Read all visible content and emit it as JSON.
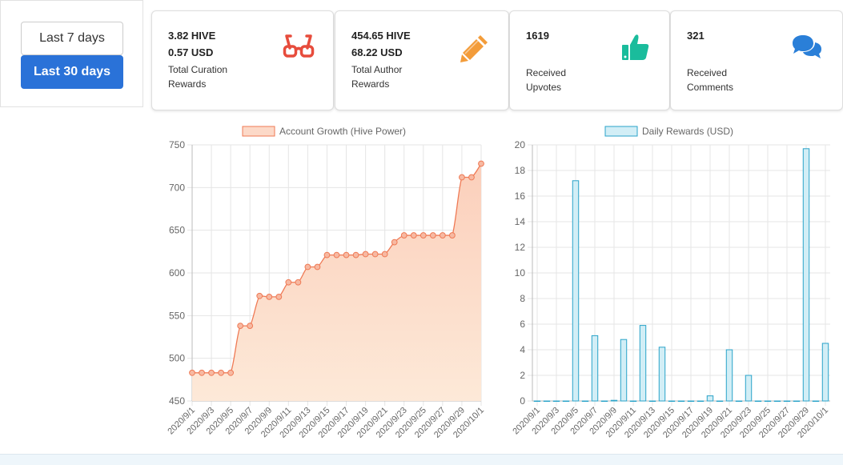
{
  "period": {
    "last7_label": "Last 7 days",
    "last30_label": "Last 30 days"
  },
  "cards": {
    "curation": {
      "hive": "3.82 HIVE",
      "usd": "0.57 USD",
      "label_line1": "Total Curation",
      "label_line2": "Rewards",
      "icon": "glasses-icon",
      "color": "#e74c3c"
    },
    "author": {
      "hive": "454.65 HIVE",
      "usd": "68.22 USD",
      "label_line1": "Total Author",
      "label_line2": "Rewards",
      "icon": "pencil-icon",
      "color": "#f39c3a"
    },
    "upvotes": {
      "value": "1619",
      "label_line1": "Received",
      "label_line2": "Upvotes",
      "icon": "thumbs-up-icon",
      "color": "#1abc9c"
    },
    "comments": {
      "value": "321",
      "label_line1": "Received",
      "label_line2": "Comments",
      "icon": "comments-icon",
      "color": "#2a7fd8"
    }
  },
  "chart_data": [
    {
      "type": "area",
      "legend": "Account Growth (Hive Power)",
      "color_line": "#ef7a55",
      "color_fill": "#fcd9c8",
      "ylim": [
        450,
        750
      ],
      "yticks": [
        450,
        500,
        550,
        600,
        650,
        700,
        750
      ],
      "x": [
        "2020/9/1",
        "2020/9/2",
        "2020/9/3",
        "2020/9/4",
        "2020/9/5",
        "2020/9/6",
        "2020/9/7",
        "2020/9/8",
        "2020/9/9",
        "2020/9/10",
        "2020/9/11",
        "2020/9/12",
        "2020/9/13",
        "2020/9/14",
        "2020/9/15",
        "2020/9/16",
        "2020/9/17",
        "2020/9/18",
        "2020/9/19",
        "2020/9/20",
        "2020/9/21",
        "2020/9/22",
        "2020/9/23",
        "2020/9/24",
        "2020/9/25",
        "2020/9/26",
        "2020/9/27",
        "2020/9/28",
        "2020/9/29",
        "2020/9/30",
        "2020/10/1"
      ],
      "tick_labels": [
        "2020/9/1",
        "2020/9/3",
        "2020/9/5",
        "2020/9/7",
        "2020/9/9",
        "2020/9/11",
        "2020/9/13",
        "2020/9/15",
        "2020/9/17",
        "2020/9/19",
        "2020/9/21",
        "2020/9/23",
        "2020/9/25",
        "2020/9/27",
        "2020/9/29",
        "2020/10/1"
      ],
      "values": [
        483,
        483,
        483,
        483,
        483,
        538,
        538,
        573,
        572,
        572,
        589,
        589,
        607,
        607,
        621,
        621,
        621,
        621,
        622,
        622,
        622,
        636,
        644,
        644,
        644,
        644,
        644,
        644,
        712,
        712,
        728
      ]
    },
    {
      "type": "bar",
      "legend": "Daily Rewards (USD)",
      "color_line": "#2aa3c9",
      "color_fill": "#d2eef6",
      "ylim": [
        0,
        20
      ],
      "yticks": [
        0,
        2,
        4,
        6,
        8,
        10,
        12,
        14,
        16,
        18,
        20
      ],
      "x": [
        "2020/9/1",
        "2020/9/2",
        "2020/9/3",
        "2020/9/4",
        "2020/9/5",
        "2020/9/6",
        "2020/9/7",
        "2020/9/8",
        "2020/9/9",
        "2020/9/10",
        "2020/9/11",
        "2020/9/12",
        "2020/9/13",
        "2020/9/14",
        "2020/9/15",
        "2020/9/16",
        "2020/9/17",
        "2020/9/18",
        "2020/9/19",
        "2020/9/20",
        "2020/9/21",
        "2020/9/22",
        "2020/9/23",
        "2020/9/24",
        "2020/9/25",
        "2020/9/26",
        "2020/9/27",
        "2020/9/28",
        "2020/9/29",
        "2020/9/30",
        "2020/10/1"
      ],
      "tick_labels": [
        "2020/9/1",
        "2020/9/3",
        "2020/9/5",
        "2020/9/7",
        "2020/9/9",
        "2020/9/11",
        "2020/9/13",
        "2020/9/15",
        "2020/9/17",
        "2020/9/19",
        "2020/9/21",
        "2020/9/23",
        "2020/9/25",
        "2020/9/27",
        "2020/9/29",
        "2020/10/1"
      ],
      "values": [
        0,
        0,
        0,
        0,
        17.2,
        0,
        5.1,
        0,
        0.05,
        4.8,
        0,
        5.9,
        0,
        4.2,
        0,
        0,
        0,
        0,
        0.4,
        0,
        4.0,
        0,
        2.0,
        0,
        0,
        0,
        0,
        0,
        19.7,
        0,
        4.5
      ]
    }
  ]
}
